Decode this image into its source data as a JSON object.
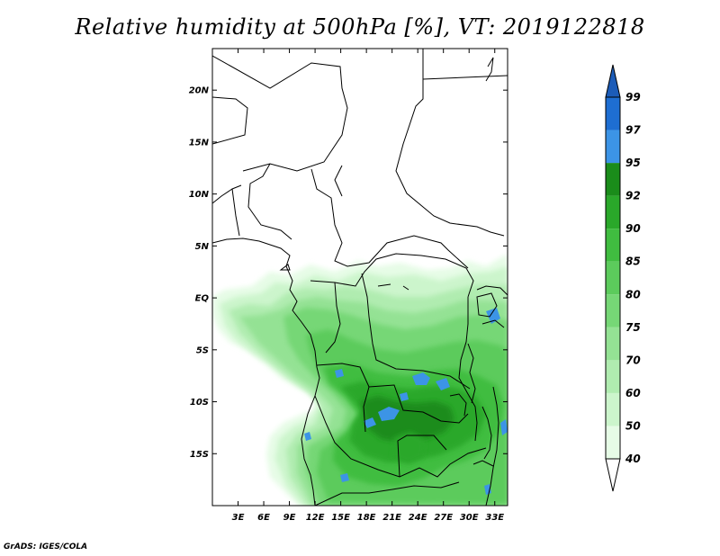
{
  "figure": {
    "title": "Relative humidity at 500hPa [%], VT: 2019122818",
    "credit": "GrADS: IGES/COLA"
  },
  "map": {
    "projection": "lat-lon",
    "lon_range": [
      0,
      34.5
    ],
    "lat_range": [
      -20,
      24
    ],
    "lat_ticks": [
      {
        "value": 20,
        "label": "20N"
      },
      {
        "value": 15,
        "label": "15N"
      },
      {
        "value": 10,
        "label": "10N"
      },
      {
        "value": 5,
        "label": "5N"
      },
      {
        "value": 0,
        "label": "EQ"
      },
      {
        "value": -5,
        "label": "5S"
      },
      {
        "value": -10,
        "label": "10S"
      },
      {
        "value": -15,
        "label": "15S"
      }
    ],
    "lon_ticks": [
      {
        "value": 3,
        "label": "3E"
      },
      {
        "value": 6,
        "label": "6E"
      },
      {
        "value": 9,
        "label": "9E"
      },
      {
        "value": 12,
        "label": "12E"
      },
      {
        "value": 15,
        "label": "15E"
      },
      {
        "value": 18,
        "label": "18E"
      },
      {
        "value": 21,
        "label": "21E"
      },
      {
        "value": 24,
        "label": "24E"
      },
      {
        "value": 27,
        "label": "27E"
      },
      {
        "value": 30,
        "label": "30E"
      },
      {
        "value": 33,
        "label": "33E"
      }
    ],
    "field": "relative humidity, 500 hPa",
    "units": "%",
    "colors": {
      "background": "#ffffff",
      "border": "#000000"
    }
  },
  "colorbar": {
    "levels": [
      {
        "label": "40",
        "color": "#ffffff"
      },
      {
        "label": "50",
        "color": "#e6fce6"
      },
      {
        "label": "60",
        "color": "#ccf5cc"
      },
      {
        "label": "70",
        "color": "#b0ecb0"
      },
      {
        "label": "75",
        "color": "#94e294"
      },
      {
        "label": "80",
        "color": "#76d776"
      },
      {
        "label": "85",
        "color": "#5ccb5c"
      },
      {
        "label": "90",
        "color": "#40bd40"
      },
      {
        "label": "92",
        "color": "#2aa82a"
      },
      {
        "label": "95",
        "color": "#1a8c1a"
      },
      {
        "label": "97",
        "color": "#3c94e6"
      },
      {
        "label": "99",
        "color": "#1e6ed2"
      }
    ],
    "over_color": "#1c5cb8"
  }
}
